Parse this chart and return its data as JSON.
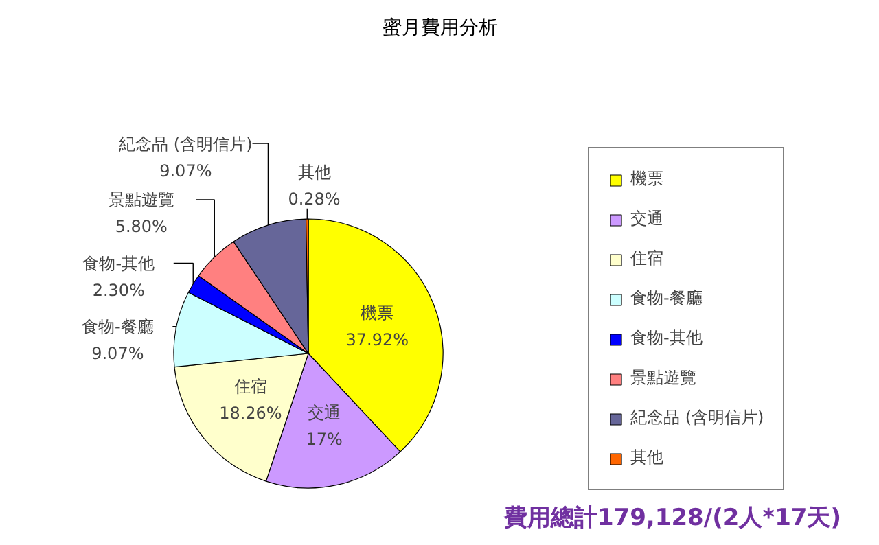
{
  "chart_data": {
    "type": "pie",
    "title": "蜜月費用分析",
    "categories": [
      "機票",
      "交通",
      "住宿",
      "食物-餐廳",
      "食物-其他",
      "景點遊覽",
      "紀念品 (含明信片)",
      "其他"
    ],
    "values": [
      37.92,
      17,
      18.26,
      9.07,
      2.3,
      5.8,
      9.07,
      0.28
    ],
    "value_labels": [
      "37.92%",
      "17%",
      "18.26%",
      "9.07%",
      "2.30%",
      "5.80%",
      "9.07%",
      "0.28%"
    ],
    "colors": [
      "#ffff00",
      "#cc99ff",
      "#ffffcc",
      "#ccffff",
      "#0000ff",
      "#ff8080",
      "#666699",
      "#ff6600"
    ],
    "legend": "right",
    "annotations": [
      "費用總計179,128/(2人*17天)"
    ]
  }
}
